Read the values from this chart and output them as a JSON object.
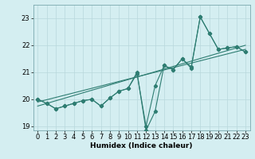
{
  "xlabel": "Humidex (Indice chaleur)",
  "x": [
    0,
    1,
    2,
    3,
    4,
    5,
    6,
    7,
    8,
    9,
    10,
    11,
    12,
    13,
    14,
    15,
    16,
    17,
    18,
    19,
    20,
    21,
    22,
    23
  ],
  "line1": [
    20.0,
    19.85,
    19.65,
    19.75,
    19.85,
    19.95,
    20.0,
    19.75,
    20.05,
    20.3,
    20.4,
    21.0,
    18.85,
    19.55,
    21.25,
    21.1,
    21.5,
    21.15,
    23.05,
    22.45,
    21.85,
    21.9,
    21.95,
    21.75
  ],
  "line2": [
    20.0,
    19.85,
    19.65,
    19.75,
    19.85,
    19.95,
    20.0,
    19.75,
    20.05,
    20.3,
    20.4,
    20.95,
    19.0,
    20.5,
    21.25,
    21.1,
    21.5,
    21.2,
    23.05,
    22.45,
    21.85,
    21.9,
    21.95,
    21.75
  ],
  "line3_x": [
    0,
    23
  ],
  "line3_y": [
    19.9,
    21.85
  ],
  "line4_x": [
    0,
    23
  ],
  "line4_y": [
    19.75,
    22.0
  ],
  "bg_color": "#d4eef1",
  "line_color": "#2e7d72",
  "grid_color": "#b8d8dc",
  "ylim": [
    18.85,
    23.5
  ],
  "yticks": [
    19,
    20,
    21,
    22,
    23
  ],
  "xticks": [
    0,
    1,
    2,
    3,
    4,
    5,
    6,
    7,
    8,
    9,
    10,
    11,
    12,
    13,
    14,
    15,
    16,
    17,
    18,
    19,
    20,
    21,
    22,
    23
  ],
  "xlabel_fontsize": 6.5,
  "tick_labelsize": 6,
  "lw": 0.8,
  "marker_size": 2.2
}
